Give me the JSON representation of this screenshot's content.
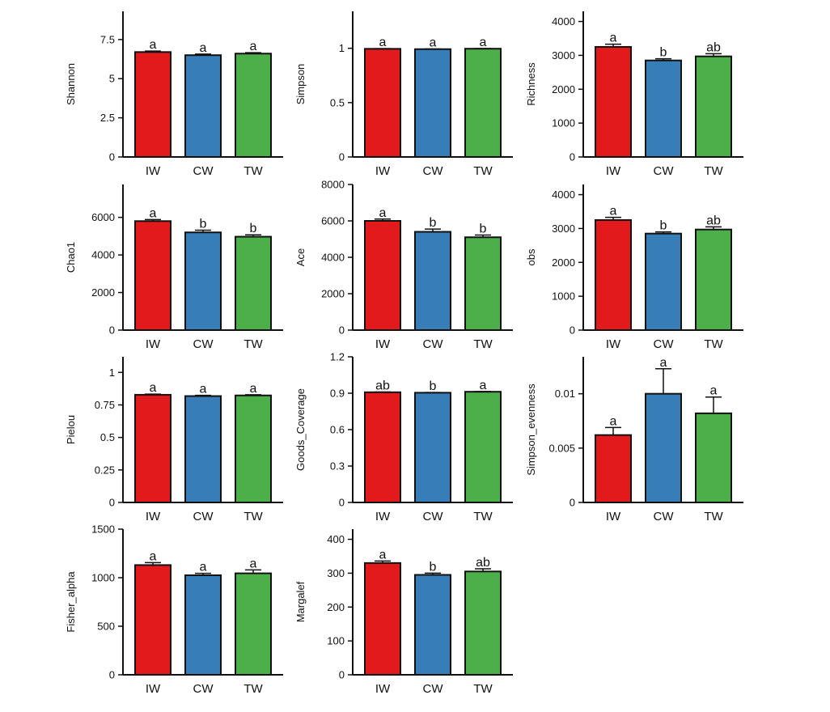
{
  "colors": {
    "IW": "#e31a1c",
    "CW": "#377eb8",
    "TW": "#4daf4a"
  },
  "chart_data": [
    {
      "type": "bar",
      "ylabel": "Shannon",
      "categories": [
        "IW",
        "CW",
        "TW"
      ],
      "values": [
        6.7,
        6.5,
        6.6
      ],
      "errors": [
        0.06,
        0.07,
        0.06
      ],
      "sig": [
        "a",
        "a",
        "a"
      ],
      "ylim": [
        0,
        9.3
      ],
      "yticks": [
        0,
        2.5,
        5,
        7.5
      ],
      "ytick_labels": [
        "0",
        "2.5",
        "5",
        "7.5"
      ]
    },
    {
      "type": "bar",
      "ylabel": "Simpson",
      "categories": [
        "IW",
        "CW",
        "TW"
      ],
      "values": [
        0.995,
        0.992,
        0.996
      ],
      "errors": [
        0.002,
        0.002,
        0.002
      ],
      "sig": [
        "a",
        "a",
        "a"
      ],
      "ylim": [
        0,
        1.34
      ],
      "yticks": [
        0,
        0.5,
        1
      ],
      "ytick_labels": [
        "0",
        "0.5",
        "1"
      ]
    },
    {
      "type": "bar",
      "ylabel": "Richness",
      "categories": [
        "IW",
        "CW",
        "TW"
      ],
      "values": [
        3250,
        2850,
        2970
      ],
      "errors": [
        80,
        50,
        80
      ],
      "sig": [
        "a",
        "b",
        "ab"
      ],
      "ylim": [
        0,
        4300
      ],
      "yticks": [
        0,
        1000,
        2000,
        3000,
        4000
      ],
      "ytick_labels": [
        "0",
        "1000",
        "2000",
        "3000",
        "4000"
      ]
    },
    {
      "type": "bar",
      "ylabel": "Chao1",
      "categories": [
        "IW",
        "CW",
        "TW"
      ],
      "values": [
        5800,
        5200,
        4970
      ],
      "errors": [
        80,
        120,
        100
      ],
      "sig": [
        "a",
        "b",
        "b"
      ],
      "ylim": [
        0,
        7750
      ],
      "yticks": [
        0,
        2000,
        4000,
        6000
      ],
      "ytick_labels": [
        "0",
        "2000",
        "4000",
        "6000"
      ]
    },
    {
      "type": "bar",
      "ylabel": "Ace",
      "categories": [
        "IW",
        "CW",
        "TW"
      ],
      "values": [
        6000,
        5400,
        5100
      ],
      "errors": [
        100,
        150,
        120
      ],
      "sig": [
        "a",
        "b",
        "b"
      ],
      "ylim": [
        0,
        8000
      ],
      "yticks": [
        0,
        2000,
        4000,
        6000,
        8000
      ],
      "ytick_labels": [
        "0",
        "2000",
        "4000",
        "6000",
        "8000"
      ]
    },
    {
      "type": "bar",
      "ylabel": "obs",
      "categories": [
        "IW",
        "CW",
        "TW"
      ],
      "values": [
        3250,
        2850,
        2970
      ],
      "errors": [
        80,
        50,
        80
      ],
      "sig": [
        "a",
        "b",
        "ab"
      ],
      "ylim": [
        0,
        4300
      ],
      "yticks": [
        0,
        1000,
        2000,
        3000,
        4000
      ],
      "ytick_labels": [
        "0",
        "1000",
        "2000",
        "3000",
        "4000"
      ]
    },
    {
      "type": "bar",
      "ylabel": "Pielou",
      "categories": [
        "IW",
        "CW",
        "TW"
      ],
      "values": [
        0.828,
        0.818,
        0.823
      ],
      "errors": [
        0.005,
        0.006,
        0.005
      ],
      "sig": [
        "a",
        "a",
        "a"
      ],
      "ylim": [
        0,
        1.12
      ],
      "yticks": [
        0,
        0.25,
        0.5,
        0.75,
        1
      ],
      "ytick_labels": [
        "0",
        "0.25",
        "0.5",
        "0.75",
        "1"
      ]
    },
    {
      "type": "bar",
      "ylabel": "Goods_Coverage",
      "categories": [
        "IW",
        "CW",
        "TW"
      ],
      "values": [
        0.908,
        0.904,
        0.912
      ],
      "errors": [
        0.002,
        0.002,
        0.002
      ],
      "sig": [
        "ab",
        "b",
        "a"
      ],
      "ylim": [
        0,
        1.2
      ],
      "yticks": [
        0,
        0.3,
        0.6,
        0.9,
        1.2
      ],
      "ytick_labels": [
        "0",
        "0.3",
        "0.6",
        "0.9",
        "1.2"
      ]
    },
    {
      "type": "bar",
      "ylabel": "Simpson_evenness",
      "categories": [
        "IW",
        "CW",
        "TW"
      ],
      "values": [
        0.0062,
        0.01,
        0.0082
      ],
      "errors": [
        0.0007,
        0.0023,
        0.0015
      ],
      "sig": [
        "a",
        "a",
        "a"
      ],
      "ylim": [
        0,
        0.0134
      ],
      "yticks": [
        0,
        0.005,
        0.01
      ],
      "ytick_labels": [
        "0",
        "0.005",
        "0.01"
      ]
    },
    {
      "type": "bar",
      "ylabel": "Fisher_alpha",
      "categories": [
        "IW",
        "CW",
        "TW"
      ],
      "values": [
        1130,
        1025,
        1045
      ],
      "errors": [
        25,
        20,
        35
      ],
      "sig": [
        "a",
        "a",
        "a"
      ],
      "ylim": [
        0,
        1500
      ],
      "yticks": [
        0,
        500,
        1000,
        1500
      ],
      "ytick_labels": [
        "0",
        "500",
        "1000",
        "1500"
      ]
    },
    {
      "type": "bar",
      "ylabel": "Margalef",
      "categories": [
        "IW",
        "CW",
        "TW"
      ],
      "values": [
        330,
        295,
        305
      ],
      "errors": [
        6,
        5,
        8
      ],
      "sig": [
        "a",
        "b",
        "ab"
      ],
      "ylim": [
        0,
        430
      ],
      "yticks": [
        0,
        100,
        200,
        300,
        400
      ],
      "ytick_labels": [
        "0",
        "100",
        "200",
        "300",
        "400"
      ]
    }
  ]
}
